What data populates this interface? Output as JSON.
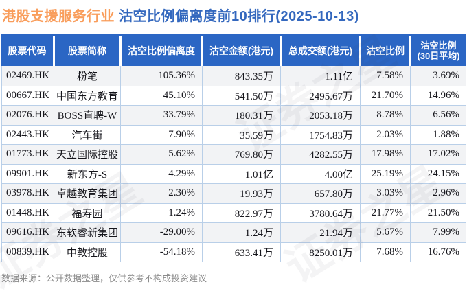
{
  "title": {
    "industry": "港股支援服务行业",
    "main": "沽空比例偏离度前10排行(2025-10-13)"
  },
  "table": {
    "columns": [
      {
        "label": "股票代码"
      },
      {
        "label": "股票简称"
      },
      {
        "label": "沽空比例偏离度"
      },
      {
        "label": "沽空金额(港元)"
      },
      {
        "label": "总成交额(港元)"
      },
      {
        "label": "沽空比例"
      },
      {
        "label": "沽空比例",
        "sublabel": "(30日平均)"
      }
    ],
    "rows": [
      {
        "code": "02469.HK",
        "name": "粉笔",
        "deviation": "105.36%",
        "amount": "843.35万",
        "turnover": "1.11亿",
        "ratio": "7.58%",
        "ratio30": "3.69%"
      },
      {
        "code": "00667.HK",
        "name": "中国东方教育",
        "deviation": "45.10%",
        "amount": "541.50万",
        "turnover": "2495.67万",
        "ratio": "21.70%",
        "ratio30": "14.96%"
      },
      {
        "code": "02076.HK",
        "name": "BOSS直聘-W",
        "deviation": "33.79%",
        "amount": "180.31万",
        "turnover": "2053.18万",
        "ratio": "8.78%",
        "ratio30": "6.56%"
      },
      {
        "code": "02443.HK",
        "name": "汽车街",
        "deviation": "7.90%",
        "amount": "35.59万",
        "turnover": "1754.83万",
        "ratio": "2.03%",
        "ratio30": "1.88%"
      },
      {
        "code": "01773.HK",
        "name": "天立国际控股",
        "deviation": "5.62%",
        "amount": "769.80万",
        "turnover": "4282.55万",
        "ratio": "17.98%",
        "ratio30": "17.02%"
      },
      {
        "code": "09901.HK",
        "name": "新东方-S",
        "deviation": "4.29%",
        "amount": "1.01亿",
        "turnover": "4.00亿",
        "ratio": "25.19%",
        "ratio30": "24.15%"
      },
      {
        "code": "03978.HK",
        "name": "卓越教育集团",
        "deviation": "2.30%",
        "amount": "19.93万",
        "turnover": "657.80万",
        "ratio": "3.03%",
        "ratio30": "2.96%"
      },
      {
        "code": "01448.HK",
        "name": "福寿园",
        "deviation": "1.24%",
        "amount": "822.97万",
        "turnover": "3780.64万",
        "ratio": "21.77%",
        "ratio30": "21.50%"
      },
      {
        "code": "09616.HK",
        "name": "东软睿新集团",
        "deviation": "-29.00%",
        "amount": "1.24万",
        "turnover": "21.94万",
        "ratio": "5.67%",
        "ratio30": "7.99%"
      },
      {
        "code": "00839.HK",
        "name": "中教控股",
        "deviation": "-54.18%",
        "amount": "633.41万",
        "turnover": "8250.01万",
        "ratio": "7.68%",
        "ratio30": "16.76%"
      }
    ]
  },
  "footer": {
    "note": "数据来源：公开数据整理，仅供参考不构成投资建议"
  },
  "watermark": {
    "text": "证券之星"
  },
  "colors": {
    "header-blue": "#2b66c4",
    "title-blue": "#3468be",
    "title-orange": "#f99d5b",
    "grid-line": "#b9cfe8",
    "stripe": "#f2f3f5",
    "text-dark": "#16161c",
    "footer-gray": "#8c8c8c"
  }
}
